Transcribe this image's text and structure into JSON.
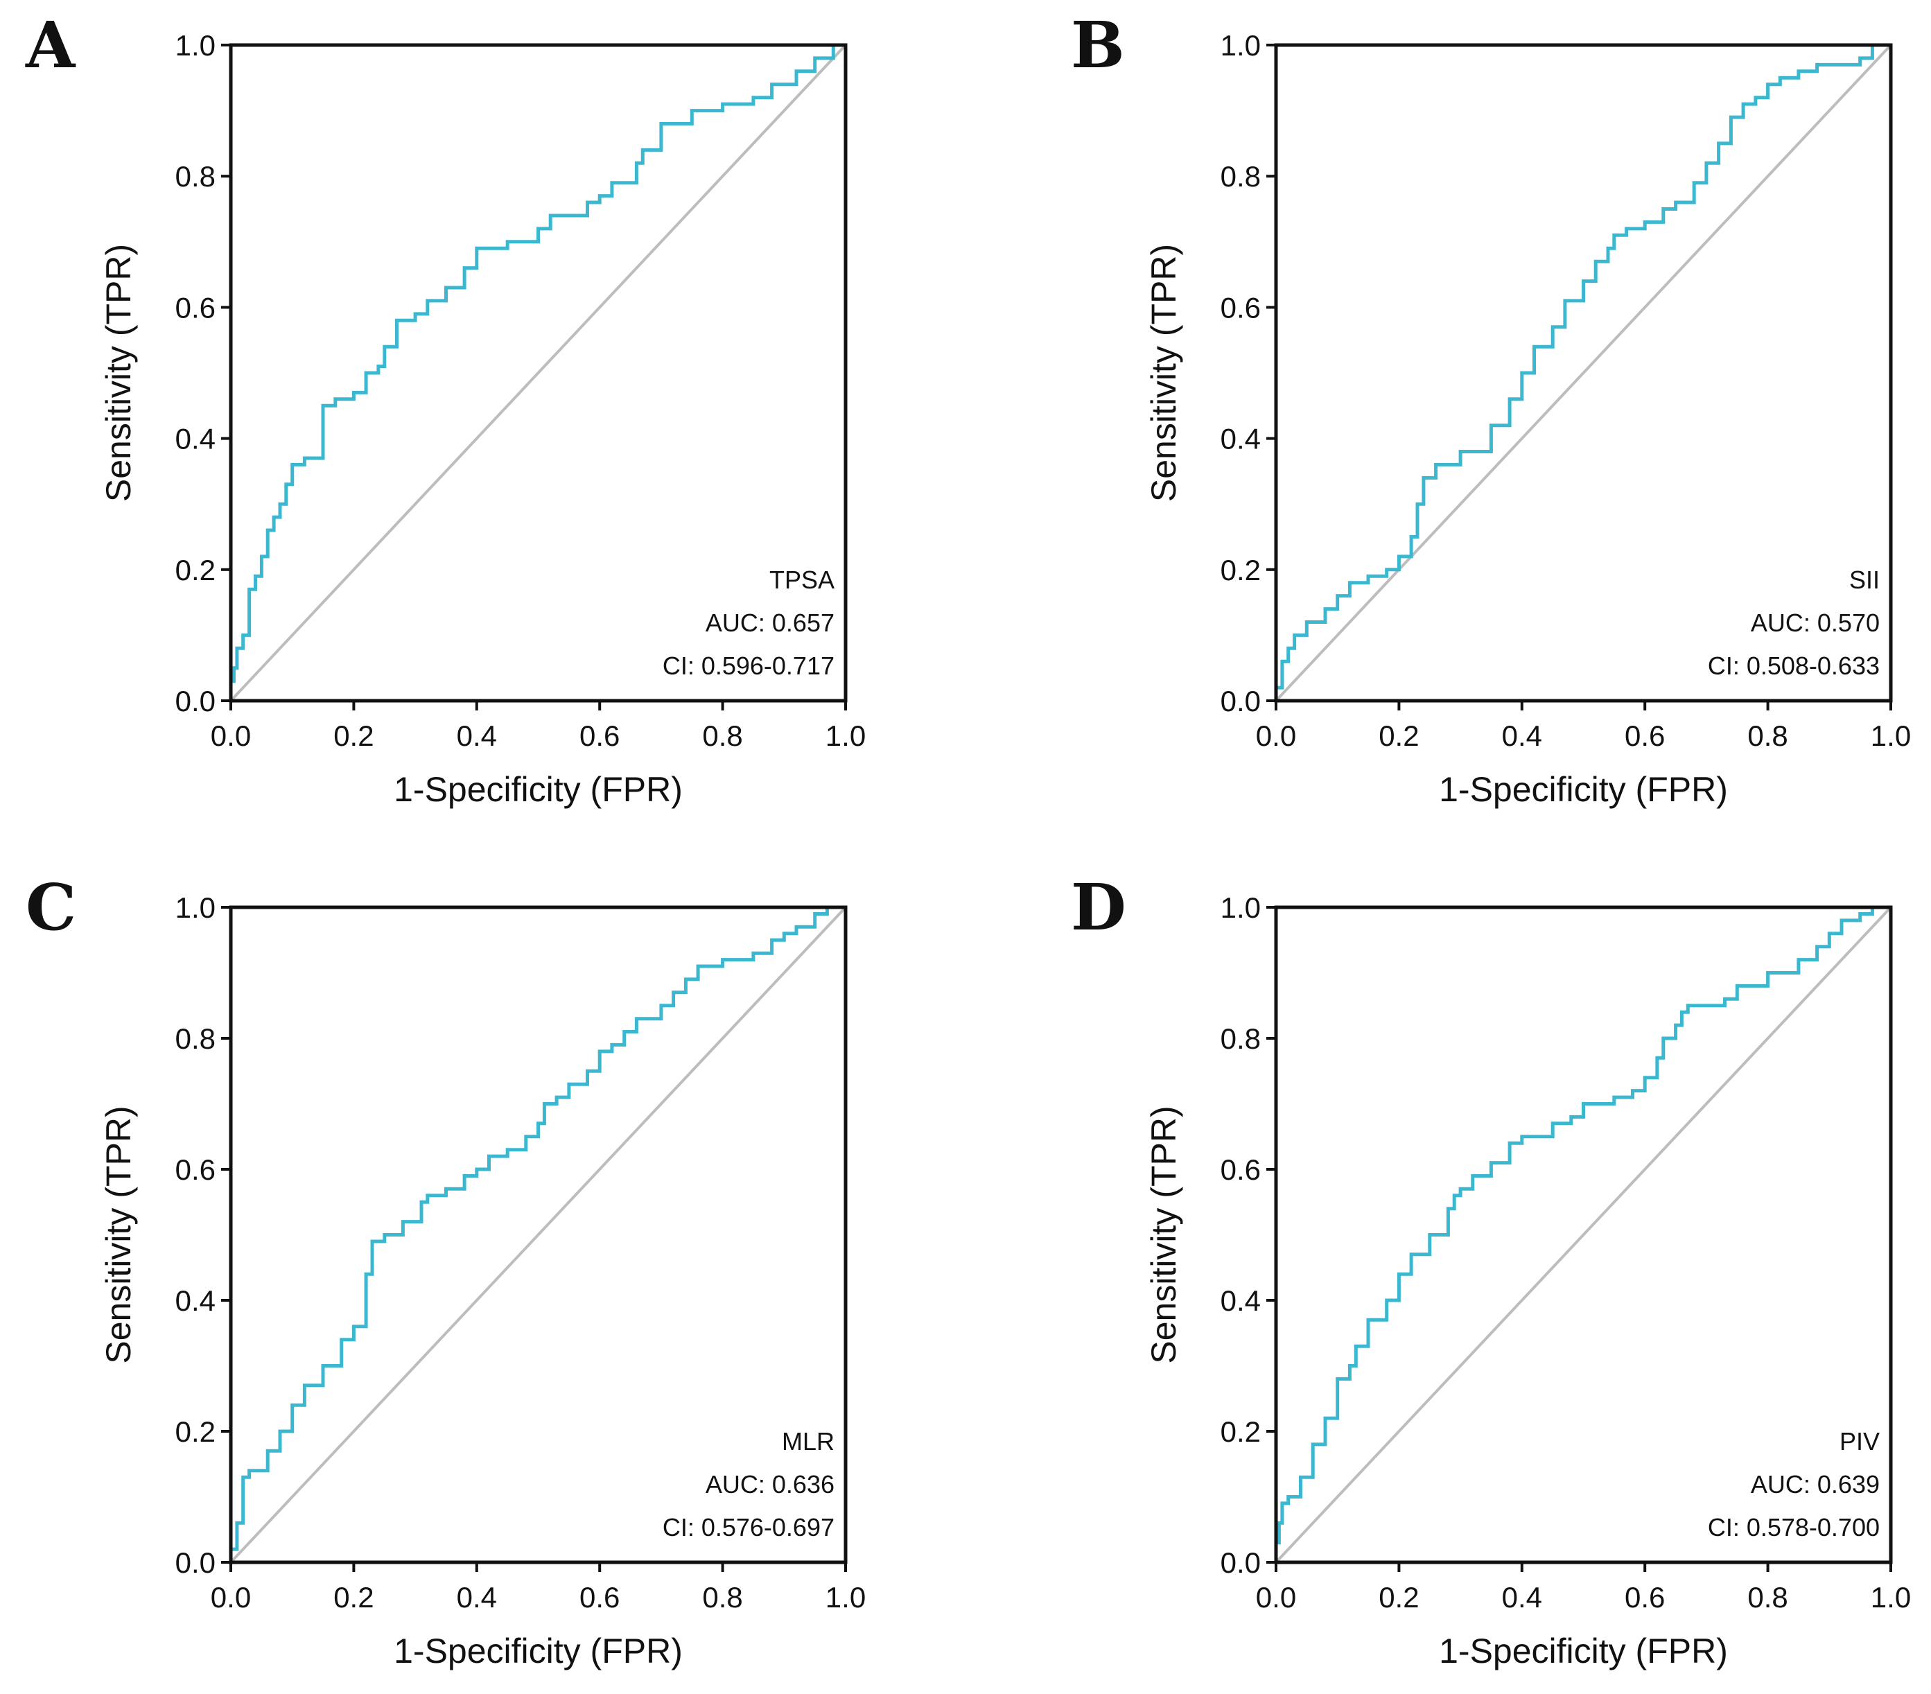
{
  "colors": {
    "roc": "#3bb8d0",
    "reference": "#bdbdbd",
    "frame": "#111111"
  },
  "chart_data": [
    {
      "type": "line",
      "panel": "A",
      "xlabel": "1-Specificity (FPR)",
      "ylabel": "Sensitivity (TPR)",
      "xlim": [
        0,
        1
      ],
      "ylim": [
        0,
        1
      ],
      "xticks": [
        "0.0",
        "0.2",
        "0.4",
        "0.6",
        "0.8",
        "1.0"
      ],
      "yticks": [
        "0.0",
        "0.2",
        "0.4",
        "0.6",
        "0.8",
        "1.0"
      ],
      "grid": false,
      "annotations": [
        "TPSA",
        "AUC: 0.657",
        "CI: 0.596-0.717"
      ],
      "series": [
        {
          "x": [
            0,
            0.005,
            0.01,
            0.02,
            0.03,
            0.04,
            0.05,
            0.06,
            0.07,
            0.08,
            0.09,
            0.1,
            0.12,
            0.15,
            0.17,
            0.18,
            0.2,
            0.22,
            0.24,
            0.25,
            0.27,
            0.3,
            0.32,
            0.35,
            0.38,
            0.4,
            0.45,
            0.5,
            0.52,
            0.55,
            0.58,
            0.6,
            0.62,
            0.66,
            0.67,
            0.7,
            0.75,
            0.8,
            0.85,
            0.88,
            0.92,
            0.95,
            0.98,
            1.0
          ],
          "y": [
            0,
            0.03,
            0.05,
            0.08,
            0.1,
            0.17,
            0.19,
            0.22,
            0.26,
            0.28,
            0.3,
            0.33,
            0.36,
            0.37,
            0.45,
            0.46,
            0.46,
            0.47,
            0.5,
            0.51,
            0.54,
            0.58,
            0.59,
            0.61,
            0.63,
            0.66,
            0.69,
            0.7,
            0.72,
            0.74,
            0.74,
            0.76,
            0.77,
            0.79,
            0.82,
            0.84,
            0.88,
            0.9,
            0.91,
            0.92,
            0.94,
            0.96,
            0.98,
            1.0
          ]
        },
        {
          "x": [
            0,
            1
          ],
          "y": [
            0,
            1
          ]
        }
      ]
    },
    {
      "type": "line",
      "panel": "B",
      "xlabel": "1-Specificity (FPR)",
      "ylabel": "Sensitivity (TPR)",
      "xlim": [
        0,
        1
      ],
      "ylim": [
        0,
        1
      ],
      "xticks": [
        "0.0",
        "0.2",
        "0.4",
        "0.6",
        "0.8",
        "1.0"
      ],
      "yticks": [
        "0.0",
        "0.2",
        "0.4",
        "0.6",
        "0.8",
        "1.0"
      ],
      "grid": false,
      "annotations": [
        "SII",
        "AUC: 0.570",
        "CI: 0.508-0.633"
      ],
      "series": [
        {
          "x": [
            0,
            0.01,
            0.02,
            0.03,
            0.05,
            0.08,
            0.1,
            0.12,
            0.15,
            0.18,
            0.2,
            0.22,
            0.23,
            0.24,
            0.26,
            0.3,
            0.35,
            0.38,
            0.4,
            0.42,
            0.45,
            0.47,
            0.5,
            0.52,
            0.54,
            0.55,
            0.57,
            0.6,
            0.63,
            0.65,
            0.68,
            0.7,
            0.72,
            0.74,
            0.76,
            0.78,
            0.8,
            0.82,
            0.85,
            0.88,
            0.9,
            0.95,
            0.97,
            1.0
          ],
          "y": [
            0,
            0.02,
            0.06,
            0.08,
            0.1,
            0.12,
            0.14,
            0.16,
            0.18,
            0.19,
            0.2,
            0.22,
            0.25,
            0.3,
            0.34,
            0.36,
            0.38,
            0.42,
            0.46,
            0.5,
            0.54,
            0.57,
            0.61,
            0.64,
            0.67,
            0.69,
            0.71,
            0.72,
            0.73,
            0.75,
            0.76,
            0.79,
            0.82,
            0.85,
            0.89,
            0.91,
            0.92,
            0.94,
            0.95,
            0.96,
            0.97,
            0.97,
            0.98,
            1.0
          ]
        },
        {
          "x": [
            0,
            1
          ],
          "y": [
            0,
            1
          ]
        }
      ]
    },
    {
      "type": "line",
      "panel": "C",
      "xlabel": "1-Specificity (FPR)",
      "ylabel": "Sensitivity (TPR)",
      "xlim": [
        0,
        1
      ],
      "ylim": [
        0,
        1
      ],
      "xticks": [
        "0.0",
        "0.2",
        "0.4",
        "0.6",
        "0.8",
        "1.0"
      ],
      "yticks": [
        "0.0",
        "0.2",
        "0.4",
        "0.6",
        "0.8",
        "1.0"
      ],
      "grid": false,
      "annotations": [
        "MLR",
        "AUC: 0.636",
        "CI: 0.576-0.697"
      ],
      "series": [
        {
          "x": [
            0,
            0.01,
            0.02,
            0.03,
            0.06,
            0.08,
            0.1,
            0.12,
            0.15,
            0.18,
            0.2,
            0.22,
            0.23,
            0.25,
            0.28,
            0.31,
            0.32,
            0.35,
            0.38,
            0.4,
            0.42,
            0.45,
            0.48,
            0.5,
            0.51,
            0.53,
            0.55,
            0.58,
            0.6,
            0.62,
            0.64,
            0.66,
            0.7,
            0.72,
            0.74,
            0.76,
            0.8,
            0.85,
            0.88,
            0.9,
            0.92,
            0.95,
            0.97,
            1.0
          ],
          "y": [
            0,
            0.02,
            0.06,
            0.13,
            0.14,
            0.17,
            0.2,
            0.24,
            0.27,
            0.3,
            0.34,
            0.36,
            0.44,
            0.49,
            0.5,
            0.52,
            0.55,
            0.56,
            0.57,
            0.59,
            0.6,
            0.62,
            0.63,
            0.65,
            0.67,
            0.7,
            0.71,
            0.73,
            0.75,
            0.78,
            0.79,
            0.81,
            0.83,
            0.85,
            0.87,
            0.89,
            0.91,
            0.92,
            0.93,
            0.95,
            0.96,
            0.97,
            0.99,
            1.0
          ]
        },
        {
          "x": [
            0,
            1
          ],
          "y": [
            0,
            1
          ]
        }
      ]
    },
    {
      "type": "line",
      "panel": "D",
      "xlabel": "1-Specificity (FPR)",
      "ylabel": "Sensitivity (TPR)",
      "xlim": [
        0,
        1
      ],
      "ylim": [
        0,
        1
      ],
      "xticks": [
        "0.0",
        "0.2",
        "0.4",
        "0.6",
        "0.8",
        "1.0"
      ],
      "yticks": [
        "0.0",
        "0.2",
        "0.4",
        "0.6",
        "0.8",
        "1.0"
      ],
      "grid": false,
      "annotations": [
        "PIV",
        "AUC: 0.639",
        "CI: 0.578-0.700"
      ],
      "series": [
        {
          "x": [
            0,
            0.005,
            0.01,
            0.02,
            0.04,
            0.06,
            0.08,
            0.1,
            0.12,
            0.13,
            0.15,
            0.18,
            0.2,
            0.22,
            0.25,
            0.28,
            0.29,
            0.3,
            0.32,
            0.35,
            0.38,
            0.4,
            0.45,
            0.48,
            0.5,
            0.55,
            0.58,
            0.6,
            0.62,
            0.63,
            0.65,
            0.66,
            0.67,
            0.7,
            0.73,
            0.75,
            0.8,
            0.85,
            0.88,
            0.9,
            0.92,
            0.95,
            0.97,
            1.0
          ],
          "y": [
            0,
            0.03,
            0.06,
            0.09,
            0.1,
            0.13,
            0.18,
            0.22,
            0.28,
            0.3,
            0.33,
            0.37,
            0.4,
            0.44,
            0.47,
            0.5,
            0.54,
            0.56,
            0.57,
            0.59,
            0.61,
            0.64,
            0.65,
            0.67,
            0.68,
            0.7,
            0.71,
            0.72,
            0.74,
            0.77,
            0.8,
            0.82,
            0.84,
            0.85,
            0.85,
            0.86,
            0.88,
            0.9,
            0.92,
            0.94,
            0.96,
            0.98,
            0.99,
            1.0
          ]
        },
        {
          "x": [
            0,
            1
          ],
          "y": [
            0,
            1
          ]
        }
      ]
    }
  ]
}
